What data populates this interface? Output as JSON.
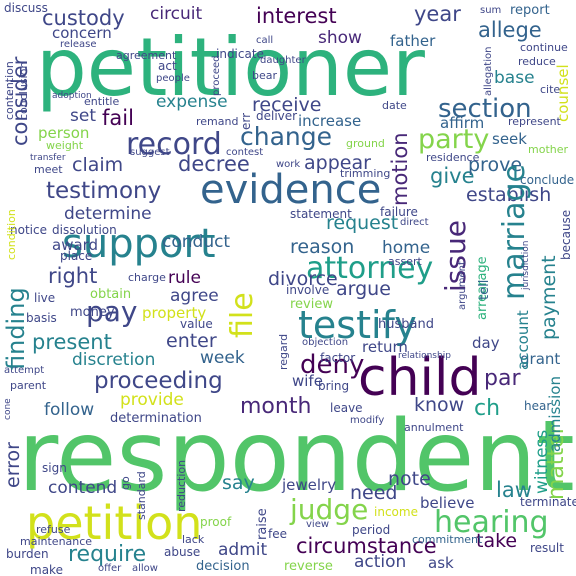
{
  "palette": {
    "background": "#ffffff",
    "yellow": "#d2e11b",
    "light_green": "#84d44b",
    "green": "#52c569",
    "teal_green": "#2db27d",
    "teal": "#1f9e89",
    "cyan_blue": "#26828e",
    "blue": "#33638d",
    "indigo": "#3f4788",
    "dark_indigo": "#482878",
    "dark_purple": "#440154"
  },
  "words": [
    {
      "text": "respondent",
      "color": "#52c569"
    },
    {
      "text": "petitioner",
      "color": "#2db27d"
    },
    {
      "text": "child",
      "color": "#440154"
    },
    {
      "text": "evidence",
      "color": "#33638d"
    },
    {
      "text": "support",
      "color": "#26828e"
    },
    {
      "text": "petition",
      "color": "#d2e11b"
    },
    {
      "text": "testify",
      "color": "#26828e"
    },
    {
      "text": "record",
      "color": "#3f4788"
    },
    {
      "text": "hearing",
      "color": "#52c569"
    },
    {
      "text": "attorney",
      "color": "#1f9e89"
    },
    {
      "text": "proceeding",
      "color": "#3f4788"
    },
    {
      "text": "testimony",
      "color": "#3f4788"
    },
    {
      "text": "section",
      "color": "#33638d"
    },
    {
      "text": "deny",
      "color": "#440154"
    },
    {
      "text": "finding",
      "color": "#26828e"
    },
    {
      "text": "marriage",
      "color": "#26828e"
    },
    {
      "text": "judge",
      "color": "#84d44b"
    },
    {
      "text": "issue",
      "color": "#482878"
    },
    {
      "text": "pay",
      "color": "#3f4788"
    },
    {
      "text": "party",
      "color": "#84d44b"
    },
    {
      "text": "month",
      "color": "#482878"
    },
    {
      "text": "file",
      "color": "#d2e11b"
    },
    {
      "text": "circumstance",
      "color": "#440154"
    },
    {
      "text": "matter",
      "color": "#84d44b"
    },
    {
      "text": "law",
      "color": "#26828e"
    },
    {
      "text": "present",
      "color": "#26828e"
    },
    {
      "text": "decree",
      "color": "#3f4788"
    },
    {
      "text": "change",
      "color": "#33638d"
    },
    {
      "text": "require",
      "color": "#26828e"
    },
    {
      "text": "custody",
      "color": "#3f4788"
    },
    {
      "text": "interest",
      "color": "#440154"
    },
    {
      "text": "fail",
      "color": "#440154"
    },
    {
      "text": "right",
      "color": "#3f4788"
    },
    {
      "text": "payment",
      "color": "#26828e"
    },
    {
      "text": "divorce",
      "color": "#3f4788"
    },
    {
      "text": "receive",
      "color": "#3f4788"
    },
    {
      "text": "establish",
      "color": "#3f4788"
    },
    {
      "text": "motion",
      "color": "#482878"
    },
    {
      "text": "allege",
      "color": "#33638d"
    },
    {
      "text": "give",
      "color": "#26828e"
    },
    {
      "text": "argue",
      "color": "#3f4788"
    },
    {
      "text": "need",
      "color": "#3f4788"
    },
    {
      "text": "par",
      "color": "#482878"
    },
    {
      "text": "ch",
      "color": "#1f9e89"
    },
    {
      "text": "circuit",
      "color": "#482878"
    },
    {
      "text": "year",
      "color": "#3f4788"
    },
    {
      "text": "consider",
      "color": "#3f4788"
    },
    {
      "text": "request",
      "color": "#26828e"
    },
    {
      "text": "claim",
      "color": "#3f4788"
    },
    {
      "text": "prove",
      "color": "#33638d"
    },
    {
      "text": "expense",
      "color": "#26828e"
    },
    {
      "text": "discretion",
      "color": "#26828e"
    },
    {
      "text": "enter",
      "color": "#3f4788"
    },
    {
      "text": "determine",
      "color": "#3f4788"
    },
    {
      "text": "appear",
      "color": "#3f4788"
    },
    {
      "text": "reason",
      "color": "#33638d"
    },
    {
      "text": "follow",
      "color": "#33638d"
    },
    {
      "text": "error",
      "color": "#3f4788"
    },
    {
      "text": "contend",
      "color": "#3f4788"
    },
    {
      "text": "say",
      "color": "#26828e"
    },
    {
      "text": "note",
      "color": "#3f4788"
    },
    {
      "text": "know",
      "color": "#3f4788"
    },
    {
      "text": "admit",
      "color": "#3f4788"
    },
    {
      "text": "take",
      "color": "#440154"
    },
    {
      "text": "action",
      "color": "#3f4788"
    },
    {
      "text": "conduct",
      "color": "#33638d"
    },
    {
      "text": "week",
      "color": "#33638d"
    },
    {
      "text": "home",
      "color": "#33638d"
    },
    {
      "text": "agree",
      "color": "#3f4788"
    },
    {
      "text": "rule",
      "color": "#440154"
    },
    {
      "text": "provide",
      "color": "#d2e11b"
    },
    {
      "text": "property",
      "color": "#d2e11b"
    },
    {
      "text": "show",
      "color": "#482878"
    },
    {
      "text": "father",
      "color": "#33638d"
    },
    {
      "text": "base",
      "color": "#26828e"
    },
    {
      "text": "set",
      "color": "#3f4788"
    },
    {
      "text": "increase",
      "color": "#33638d"
    },
    {
      "text": "affirm",
      "color": "#33638d"
    },
    {
      "text": "seek",
      "color": "#33638d"
    },
    {
      "text": "person",
      "color": "#84d44b"
    },
    {
      "text": "award",
      "color": "#3f4788"
    },
    {
      "text": "witness",
      "color": "#1f9e89"
    },
    {
      "text": "account",
      "color": "#26828e"
    },
    {
      "text": "counsel",
      "color": "#d2e11b"
    },
    {
      "text": "admission",
      "color": "#26828e"
    },
    {
      "text": "arrearage",
      "color": "#2db27d"
    },
    {
      "text": "grant",
      "color": "#33638d"
    },
    {
      "text": "day",
      "color": "#3f4788"
    },
    {
      "text": "determination",
      "color": "#3f4788"
    },
    {
      "text": "review",
      "color": "#84d44b"
    },
    {
      "text": "wife",
      "color": "#3f4788"
    },
    {
      "text": "return",
      "color": "#3f4788"
    },
    {
      "text": "believe",
      "color": "#3f4788"
    },
    {
      "text": "jewelry",
      "color": "#3f4788"
    },
    {
      "text": "raise",
      "color": "#3f4788"
    },
    {
      "text": "concern",
      "color": "#3f4788"
    },
    {
      "text": "money",
      "color": "#3f4788"
    },
    {
      "text": "report",
      "color": "#33638d"
    },
    {
      "text": "statement",
      "color": "#3f4788"
    },
    {
      "text": "obtain",
      "color": "#84d44b"
    },
    {
      "text": "tell",
      "color": "#33638d"
    },
    {
      "text": "husband",
      "color": "#3f4788"
    },
    {
      "text": "live",
      "color": "#3f4788"
    },
    {
      "text": "place",
      "color": "#3f4788"
    },
    {
      "text": "notice",
      "color": "#3f4788"
    },
    {
      "text": "dissolution",
      "color": "#3f4788"
    },
    {
      "text": "conclude",
      "color": "#33638d"
    },
    {
      "text": "residence",
      "color": "#3f4788"
    },
    {
      "text": "failure",
      "color": "#3f4788"
    },
    {
      "text": "hear",
      "color": "#33638d"
    },
    {
      "text": "annulment",
      "color": "#3f4788"
    },
    {
      "text": "leave",
      "color": "#3f4788"
    },
    {
      "text": "terminate",
      "color": "#3f4788"
    },
    {
      "text": "period",
      "color": "#3f4788"
    },
    {
      "text": "income",
      "color": "#d2e11b"
    },
    {
      "text": "decision",
      "color": "#33638d"
    },
    {
      "text": "commitment",
      "color": "#33638d"
    },
    {
      "text": "reverse",
      "color": "#84d44b"
    },
    {
      "text": "ask",
      "color": "#3f4788"
    },
    {
      "text": "result",
      "color": "#3f4788"
    },
    {
      "text": "burden",
      "color": "#3f4788"
    },
    {
      "text": "make",
      "color": "#3f4788"
    },
    {
      "text": "maintenance",
      "color": "#3f4788"
    },
    {
      "text": "abuse",
      "color": "#3f4788"
    },
    {
      "text": "lack",
      "color": "#3f4788"
    },
    {
      "text": "fee",
      "color": "#3f4788"
    },
    {
      "text": "proof",
      "color": "#84d44b"
    },
    {
      "text": "sign",
      "color": "#3f4788"
    },
    {
      "text": "refuse",
      "color": "#3f4788"
    },
    {
      "text": "standard",
      "color": "#3f4788"
    },
    {
      "text": "reduction",
      "color": "#3f4788"
    },
    {
      "text": "bring",
      "color": "#3f4788"
    },
    {
      "text": "modify",
      "color": "#3f4788"
    },
    {
      "text": "factor",
      "color": "#3f4788"
    },
    {
      "text": "objection",
      "color": "#3f4788"
    },
    {
      "text": "involve",
      "color": "#3f4788"
    },
    {
      "text": "regard",
      "color": "#3f4788"
    },
    {
      "text": "value",
      "color": "#3f4788"
    },
    {
      "text": "charge",
      "color": "#3f4788"
    },
    {
      "text": "assert",
      "color": "#3f4788"
    },
    {
      "text": "argument",
      "color": "#3f4788"
    },
    {
      "text": "parent",
      "color": "#3f4788"
    },
    {
      "text": "attempt",
      "color": "#3f4788"
    },
    {
      "text": "basis",
      "color": "#3f4788"
    },
    {
      "text": "condition",
      "color": "#d2e11b"
    },
    {
      "text": "discuss",
      "color": "#3f4788"
    },
    {
      "text": "contention",
      "color": "#3f4788"
    },
    {
      "text": "conclusion",
      "color": "#3f4788"
    },
    {
      "text": "agreement",
      "color": "#3f4788"
    },
    {
      "text": "indicate",
      "color": "#3f4788"
    },
    {
      "text": "act",
      "color": "#3f4788"
    },
    {
      "text": "people",
      "color": "#3f4788"
    },
    {
      "text": "entitle",
      "color": "#3f4788"
    },
    {
      "text": "remand",
      "color": "#3f4788"
    },
    {
      "text": "deliver",
      "color": "#3f4788"
    },
    {
      "text": "date",
      "color": "#3f4788"
    },
    {
      "text": "weight",
      "color": "#84d44b"
    },
    {
      "text": "meet",
      "color": "#3f4788"
    },
    {
      "text": "contest",
      "color": "#3f4788"
    },
    {
      "text": "ground",
      "color": "#84d44b"
    },
    {
      "text": "trimming",
      "color": "#3f4788"
    },
    {
      "text": "mother",
      "color": "#84d44b"
    },
    {
      "text": "represent",
      "color": "#3f4788"
    },
    {
      "text": "reduce",
      "color": "#3f4788"
    },
    {
      "text": "continue",
      "color": "#3f4788"
    },
    {
      "text": "sum",
      "color": "#3f4788"
    },
    {
      "text": "cite",
      "color": "#3f4788"
    },
    {
      "text": "call",
      "color": "#3f4788"
    },
    {
      "text": "bear",
      "color": "#3f4788"
    },
    {
      "text": "daughter",
      "color": "#3f4788"
    },
    {
      "text": "release",
      "color": "#3f4788"
    },
    {
      "text": "suggest",
      "color": "#3f4788"
    },
    {
      "text": "work",
      "color": "#3f4788"
    },
    {
      "text": "go",
      "color": "#3f4788"
    },
    {
      "text": "because",
      "color": "#3f4788"
    },
    {
      "text": "offer",
      "color": "#3f4788"
    },
    {
      "text": "allow",
      "color": "#3f4788"
    },
    {
      "text": "view",
      "color": "#3f4788"
    },
    {
      "text": "direct",
      "color": "#3f4788"
    },
    {
      "text": "relationship",
      "color": "#3f4788"
    },
    {
      "text": "proceed",
      "color": "#3f4788"
    },
    {
      "text": "allegation",
      "color": "#3f4788"
    },
    {
      "text": "err",
      "color": "#3f4788"
    },
    {
      "text": "transfer",
      "color": "#3f4788"
    },
    {
      "text": "adoption",
      "color": "#3f4788"
    },
    {
      "text": "jurisdiction",
      "color": "#3f4788"
    },
    {
      "text": "cone",
      "color": "#3f4788"
    }
  ]
}
